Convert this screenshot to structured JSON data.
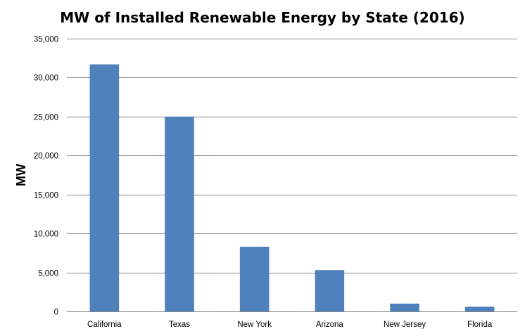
{
  "chart_data": {
    "type": "bar",
    "title": "MW of Installed Renewable Energy by State (2016)",
    "xlabel": "",
    "ylabel": "MW",
    "categories": [
      "California",
      "Texas",
      "New York",
      "Arizona",
      "New Jersey",
      "Florida"
    ],
    "values": [
      31700,
      25000,
      8300,
      5300,
      1000,
      600
    ],
    "ylim": [
      0,
      35000
    ],
    "yticks": [
      0,
      5000,
      10000,
      15000,
      20000,
      25000,
      30000,
      35000
    ],
    "ytick_labels": [
      "0",
      "5,000",
      "10,000",
      "15,000",
      "20,000",
      "25,000",
      "30,000",
      "35,000"
    ],
    "grid": true,
    "legend": "none",
    "colors": {
      "bar": "#4F81BD",
      "grid": "#868686"
    }
  }
}
